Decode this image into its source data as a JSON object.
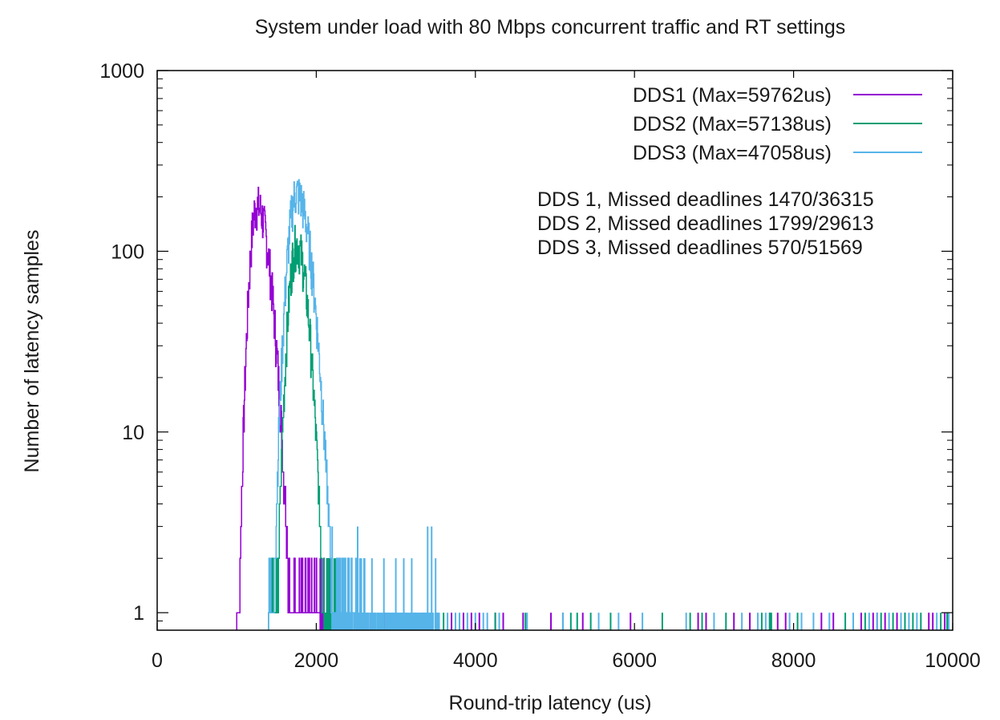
{
  "chart_data": {
    "type": "line",
    "title": "System under load with 80 Mbps concurrent traffic and RT settings",
    "xlabel": "Round-trip latency (us)",
    "ylabel": "Number of latency samples",
    "xlim": [
      0,
      10000
    ],
    "ylim": [
      0.8,
      1000
    ],
    "y_scale": "log",
    "grid": false,
    "legend_position": "top-right",
    "x_ticks": [
      0,
      2000,
      4000,
      6000,
      8000,
      10000
    ],
    "x_tick_labels": [
      "0",
      "2000",
      "4000",
      "6000",
      "8000",
      "10000"
    ],
    "y_ticks": [
      1,
      10,
      100,
      1000
    ],
    "y_tick_labels": [
      "1",
      "10",
      "100",
      "1000"
    ],
    "annotations": [
      "DDS 1, Missed deadlines 1470/36315",
      "DDS 2, Missed deadlines 1799/29613",
      "DDS 3, Missed deadlines 570/51569"
    ],
    "series": [
      {
        "name": "DDS1 (Max=59762us)",
        "color": "#9400d3",
        "peak": {
          "x": 1250,
          "y": 180,
          "sigma_left": 70,
          "sigma_right": 130
        },
        "x": [
          1000,
          1100,
          1200,
          1250,
          1300,
          1400,
          1500,
          1600,
          1700,
          1800,
          1900,
          2000,
          2050
        ],
        "values": [
          1,
          12,
          110,
          180,
          160,
          60,
          25,
          8,
          3,
          2,
          1.5,
          1,
          1
        ],
        "outliers": [
          2230,
          2650,
          2860,
          3240,
          3350,
          3700,
          3850,
          3950,
          4050,
          4250,
          4350,
          4600,
          4950,
          5350,
          5950,
          6800,
          6900,
          7250,
          7450,
          7700,
          7800,
          7900,
          8350,
          8500,
          8850,
          9000,
          9050,
          9150,
          9300,
          9400,
          9700,
          9750,
          9900
        ]
      },
      {
        "name": "DDS2 (Max=57138us)",
        "color": "#009e73",
        "peak": {
          "x": 1750,
          "y": 110,
          "sigma_left": 80,
          "sigma_right": 110
        },
        "x": [
          1400,
          1500,
          1600,
          1700,
          1750,
          1800,
          1900,
          2000,
          2050,
          2100
        ],
        "values": [
          1,
          8,
          40,
          95,
          110,
          90,
          25,
          4,
          2,
          1
        ],
        "outliers": [
          2100,
          2880,
          3250,
          3600,
          4250,
          4630,
          5100,
          5200,
          5280,
          5450,
          5700,
          6350,
          6700,
          6850,
          7150,
          7600,
          7700,
          7720,
          8050,
          8650,
          8900,
          9100,
          9250,
          9400,
          9500,
          9600,
          9850,
          9930
        ]
      },
      {
        "name": "DDS3 (Max=47058us)",
        "color": "#56b4e9",
        "peak": {
          "x": 1750,
          "y": 210,
          "sigma_left": 90,
          "sigma_right": 140
        },
        "x": [
          1400,
          1500,
          1600,
          1700,
          1750,
          1800,
          1900,
          2000,
          2100,
          2200,
          2300,
          2400,
          2500
        ],
        "values": [
          1,
          5,
          60,
          170,
          210,
          180,
          90,
          25,
          6,
          3,
          2,
          1.5,
          1
        ],
        "tail_x": [
          2200,
          2300,
          2520,
          2600,
          2700,
          2850,
          3000,
          3100,
          3200,
          3400,
          3450,
          3500
        ],
        "tail_values": [
          3,
          2,
          3,
          2,
          2,
          2,
          2,
          2,
          2,
          3,
          3,
          2
        ],
        "outliers": [
          3650,
          3750,
          3800,
          3900,
          4000,
          4100,
          4150,
          4300,
          4650,
          5100,
          5550,
          5800,
          6100,
          6650,
          7000,
          7350,
          7550,
          7650,
          7950,
          8100,
          8250,
          8450,
          8750,
          8950,
          9050,
          9200,
          9350,
          9450,
          9550,
          9800,
          9950
        ]
      }
    ]
  }
}
